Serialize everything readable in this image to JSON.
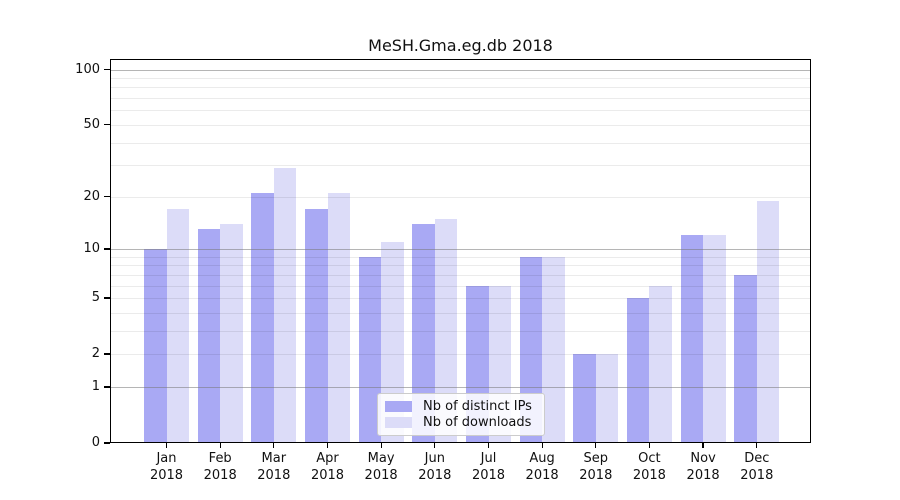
{
  "title": "MeSH.Gma.eg.db 2018",
  "chart_data": {
    "type": "bar",
    "title": "MeSH.Gma.eg.db 2018",
    "categories": [
      "Jan",
      "Feb",
      "Mar",
      "Apr",
      "May",
      "Jun",
      "Jul",
      "Aug",
      "Sep",
      "Oct",
      "Nov",
      "Dec"
    ],
    "x_year": "2018",
    "series": [
      {
        "name": "Nb of distinct IPs",
        "color": "#a9a9f4",
        "values": [
          10,
          13,
          21,
          17,
          9,
          14,
          6,
          9,
          2,
          5,
          12,
          7
        ]
      },
      {
        "name": "Nb of downloads",
        "color": "#dcdcf8",
        "values": [
          17,
          14,
          29,
          21,
          11,
          15,
          6,
          9,
          2,
          6,
          12,
          19
        ]
      }
    ],
    "yscale": "log1p",
    "yticks": [
      0,
      1,
      2,
      5,
      10,
      20,
      50,
      100
    ],
    "ylim": [
      0,
      114
    ],
    "grid": "on",
    "grid_major_values": [
      1,
      10,
      100
    ],
    "grid_minor_values": [
      2,
      3,
      4,
      5,
      6,
      7,
      8,
      9,
      20,
      30,
      40,
      50,
      60,
      70,
      80,
      90
    ],
    "legend_position": "lower center",
    "xlabel": "",
    "ylabel": ""
  },
  "colors": {
    "bar_ips": "#a9a9f4",
    "bar_downloads": "#dcdcf8",
    "grid_major": "#8f8f8f",
    "grid_minor": "#e9e9e9",
    "spine": "#000000",
    "text": "#111111",
    "legend_border": "#cccccc"
  }
}
